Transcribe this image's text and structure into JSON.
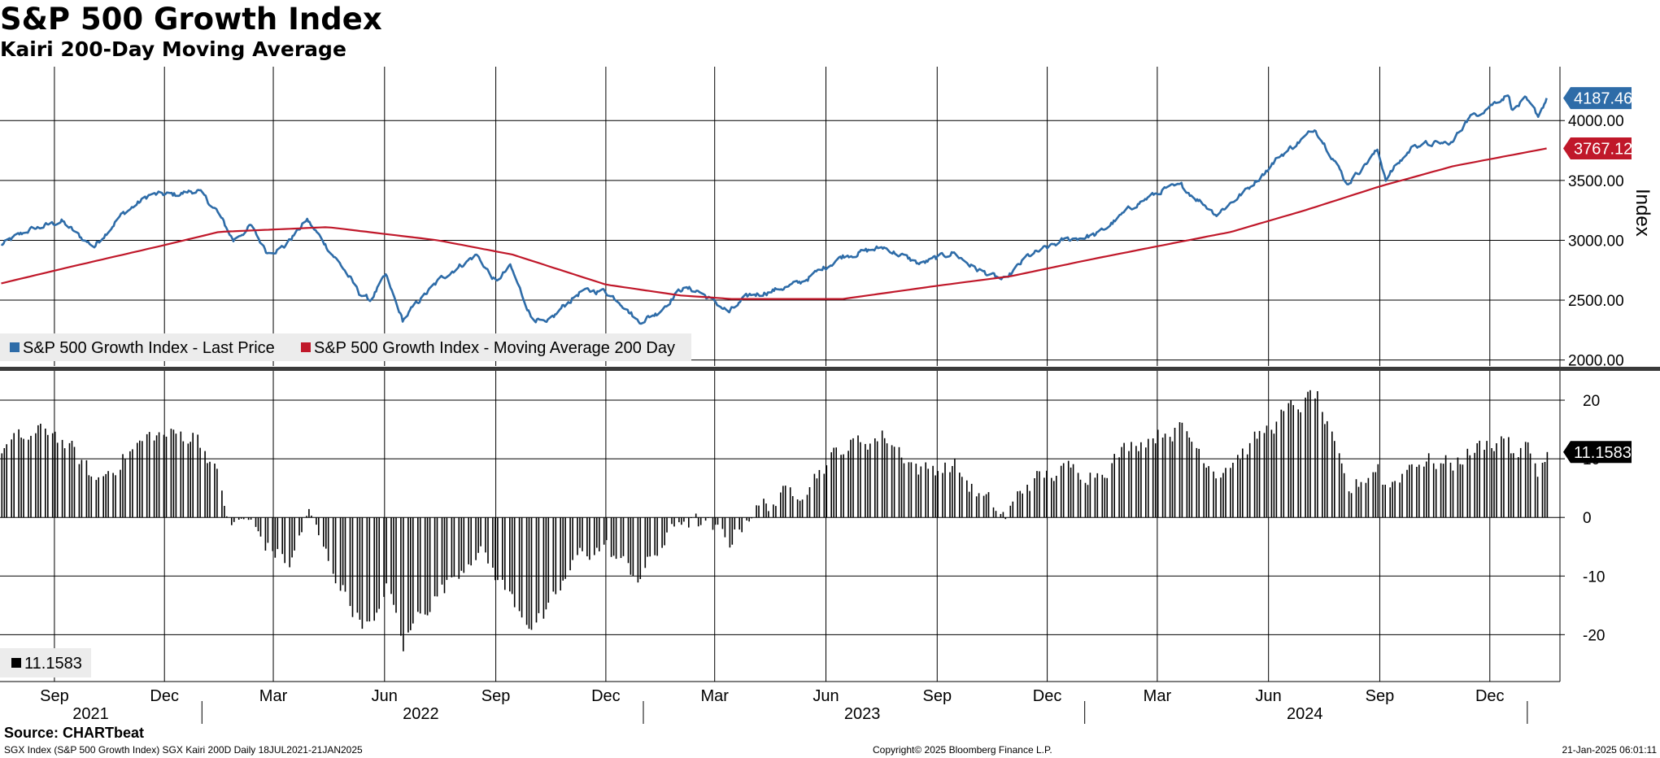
{
  "title": "S&P 500 Growth Index",
  "subtitle": "Kairi 200-Day Moving Average",
  "footer": {
    "source": "Source: CHARTbeat",
    "ticker_info": "SGX Index (S&P 500 Growth Index) SGX Kairi 200D  Daily 18JUL2021-21JAN2025",
    "copyright": "Copyright© 2025 Bloomberg Finance L.P.",
    "timestamp": "21-Jan-2025 06:01:11"
  },
  "colors": {
    "price": "#2e6ca8",
    "ma": "#c0182a",
    "kairi": "#000000",
    "grid": "#000000"
  },
  "chart_data": [
    {
      "type": "line",
      "ylabel": "Index",
      "ylim": [
        1950,
        4450
      ],
      "yticks": [
        "2000.00",
        "2500.00",
        "3000.00",
        "3500.00",
        "4000.00"
      ],
      "grid": true,
      "legend_placement": "bottom-left",
      "series": [
        {
          "name": "S&P 500 Growth Index - Last Price",
          "color": "#2e6ca8",
          "last_value_label": "4187.46",
          "points": [
            [
              "2021-07-19",
              2960
            ],
            [
              "2021-08-10",
              3080
            ],
            [
              "2021-09-07",
              3160
            ],
            [
              "2021-09-22",
              3030
            ],
            [
              "2021-10-04",
              2950
            ],
            [
              "2021-10-25",
              3200
            ],
            [
              "2021-11-19",
              3380
            ],
            [
              "2021-12-10",
              3380
            ],
            [
              "2021-12-28",
              3420
            ],
            [
              "2022-01-13",
              3250
            ],
            [
              "2022-01-27",
              3000
            ],
            [
              "2022-02-10",
              3120
            ],
            [
              "2022-02-24",
              2900
            ],
            [
              "2022-03-10",
              2950
            ],
            [
              "2022-03-29",
              3170
            ],
            [
              "2022-04-12",
              2980
            ],
            [
              "2022-04-29",
              2750
            ],
            [
              "2022-05-11",
              2560
            ],
            [
              "2022-05-20",
              2500
            ],
            [
              "2022-06-02",
              2700
            ],
            [
              "2022-06-16",
              2330
            ],
            [
              "2022-06-30",
              2500
            ],
            [
              "2022-07-20",
              2700
            ],
            [
              "2022-08-16",
              2880
            ],
            [
              "2022-09-01",
              2650
            ],
            [
              "2022-09-13",
              2780
            ],
            [
              "2022-09-30",
              2370
            ],
            [
              "2022-10-13",
              2290
            ],
            [
              "2022-10-27",
              2450
            ],
            [
              "2022-11-10",
              2570
            ],
            [
              "2022-11-30",
              2580
            ],
            [
              "2022-12-14",
              2480
            ],
            [
              "2022-12-28",
              2320
            ],
            [
              "2023-01-12",
              2390
            ],
            [
              "2023-02-02",
              2600
            ],
            [
              "2023-02-15",
              2580
            ],
            [
              "2023-03-13",
              2400
            ],
            [
              "2023-03-30",
              2540
            ],
            [
              "2023-04-18",
              2580
            ],
            [
              "2023-05-10",
              2640
            ],
            [
              "2023-06-15",
              2870
            ],
            [
              "2023-07-19",
              2940
            ],
            [
              "2023-08-18",
              2800
            ],
            [
              "2023-09-14",
              2900
            ],
            [
              "2023-10-03",
              2760
            ],
            [
              "2023-10-27",
              2660
            ],
            [
              "2023-11-14",
              2860
            ],
            [
              "2023-12-15",
              3000
            ],
            [
              "2024-01-12",
              3050
            ],
            [
              "2024-02-12",
              3300
            ],
            [
              "2024-03-08",
              3430
            ],
            [
              "2024-03-21",
              3450
            ],
            [
              "2024-04-19",
              3220
            ],
            [
              "2024-05-15",
              3430
            ],
            [
              "2024-06-10",
              3700
            ],
            [
              "2024-07-10",
              3930
            ],
            [
              "2024-07-24",
              3700
            ],
            [
              "2024-08-05",
              3470
            ],
            [
              "2024-08-30",
              3750
            ],
            [
              "2024-09-06",
              3520
            ],
            [
              "2024-09-30",
              3800
            ],
            [
              "2024-10-31",
              3810
            ],
            [
              "2024-11-11",
              4000
            ],
            [
              "2024-12-16",
              4220
            ],
            [
              "2024-12-20",
              4090
            ],
            [
              "2024-12-30",
              4170
            ],
            [
              "2025-01-10",
              4040
            ],
            [
              "2025-01-17",
              4187.46
            ]
          ]
        },
        {
          "name": "S&P 500 Growth Index - Moving Average 200 Day",
          "color": "#c0182a",
          "last_value_label": "3767.12",
          "points": [
            [
              "2021-07-19",
              2640
            ],
            [
              "2021-09-15",
              2780
            ],
            [
              "2021-12-01",
              2960
            ],
            [
              "2022-01-15",
              3070
            ],
            [
              "2022-04-15",
              3110
            ],
            [
              "2022-07-15",
              3000
            ],
            [
              "2022-09-15",
              2880
            ],
            [
              "2022-12-01",
              2630
            ],
            [
              "2023-01-31",
              2540
            ],
            [
              "2023-03-15",
              2510
            ],
            [
              "2023-06-15",
              2510
            ],
            [
              "2023-09-01",
              2620
            ],
            [
              "2023-11-01",
              2700
            ],
            [
              "2024-01-01",
              2830
            ],
            [
              "2024-03-01",
              2950
            ],
            [
              "2024-05-01",
              3070
            ],
            [
              "2024-07-01",
              3250
            ],
            [
              "2024-09-01",
              3450
            ],
            [
              "2024-11-01",
              3620
            ],
            [
              "2025-01-17",
              3767.12
            ]
          ]
        }
      ]
    },
    {
      "type": "bar",
      "ylim": [
        -28,
        25
      ],
      "yticks": [
        "-20",
        "-10",
        "0",
        "10",
        "20"
      ],
      "grid": true,
      "legend_placement": "bottom-left",
      "series": [
        {
          "name": "11.1583",
          "color": "#000000",
          "last_value_label": "11.1583",
          "points": [
            [
              "2021-07-19",
              12
            ],
            [
              "2021-08-30",
              15
            ],
            [
              "2021-09-20",
              10
            ],
            [
              "2021-10-05",
              6
            ],
            [
              "2021-10-25",
              10
            ],
            [
              "2021-11-20",
              14
            ],
            [
              "2021-12-10",
              14
            ],
            [
              "2021-12-28",
              14
            ],
            [
              "2022-01-10",
              9
            ],
            [
              "2022-01-25",
              -2
            ],
            [
              "2022-02-05",
              0
            ],
            [
              "2022-02-24",
              -5
            ],
            [
              "2022-03-15",
              -8
            ],
            [
              "2022-03-29",
              1
            ],
            [
              "2022-04-12",
              -6
            ],
            [
              "2022-04-29",
              -13
            ],
            [
              "2022-05-10",
              -17
            ],
            [
              "2022-05-24",
              -19
            ],
            [
              "2022-06-02",
              -11
            ],
            [
              "2022-06-16",
              -22
            ],
            [
              "2022-06-30",
              -16
            ],
            [
              "2022-07-20",
              -12
            ],
            [
              "2022-08-16",
              -5
            ],
            [
              "2022-09-01",
              -10
            ],
            [
              "2022-09-14",
              -14
            ],
            [
              "2022-09-30",
              -18
            ],
            [
              "2022-10-13",
              -17
            ],
            [
              "2022-10-27",
              -11
            ],
            [
              "2022-11-10",
              -6
            ],
            [
              "2022-11-30",
              -5
            ],
            [
              "2022-12-14",
              -8
            ],
            [
              "2022-12-28",
              -10
            ],
            [
              "2023-01-12",
              -6
            ],
            [
              "2023-02-02",
              0
            ],
            [
              "2023-02-15",
              -1
            ],
            [
              "2023-03-13",
              -4
            ],
            [
              "2023-03-30",
              1
            ],
            [
              "2023-04-20",
              3
            ],
            [
              "2023-05-10",
              5
            ],
            [
              "2023-06-15",
              12
            ],
            [
              "2023-07-19",
              14
            ],
            [
              "2023-08-18",
              8
            ],
            [
              "2023-09-14",
              9
            ],
            [
              "2023-10-03",
              4
            ],
            [
              "2023-10-27",
              0
            ],
            [
              "2023-11-14",
              6
            ],
            [
              "2023-12-15",
              8
            ],
            [
              "2024-01-12",
              8
            ],
            [
              "2024-02-12",
              13
            ],
            [
              "2024-03-08",
              15
            ],
            [
              "2024-03-21",
              15
            ],
            [
              "2024-04-19",
              8
            ],
            [
              "2024-05-15",
              12
            ],
            [
              "2024-06-10",
              17
            ],
            [
              "2024-07-10",
              21
            ],
            [
              "2024-07-24",
              12
            ],
            [
              "2024-08-05",
              4
            ],
            [
              "2024-08-30",
              9
            ],
            [
              "2024-09-06",
              5
            ],
            [
              "2024-09-30",
              10
            ],
            [
              "2024-10-31",
              9
            ],
            [
              "2024-11-11",
              11
            ],
            [
              "2024-12-16",
              14
            ],
            [
              "2024-12-20",
              10
            ],
            [
              "2024-12-30",
              12
            ],
            [
              "2025-01-10",
              8
            ],
            [
              "2025-01-17",
              11.1583
            ]
          ]
        }
      ]
    }
  ],
  "x_axis": {
    "months": [
      {
        "label": "Sep",
        "date": "2021-09-01"
      },
      {
        "label": "Dec",
        "date": "2021-12-01"
      },
      {
        "label": "Mar",
        "date": "2022-03-01"
      },
      {
        "label": "Jun",
        "date": "2022-06-01"
      },
      {
        "label": "Sep",
        "date": "2022-09-01"
      },
      {
        "label": "Dec",
        "date": "2022-12-01"
      },
      {
        "label": "Mar",
        "date": "2023-03-01"
      },
      {
        "label": "Jun",
        "date": "2023-06-01"
      },
      {
        "label": "Sep",
        "date": "2023-09-01"
      },
      {
        "label": "Dec",
        "date": "2023-12-01"
      },
      {
        "label": "Mar",
        "date": "2024-03-01"
      },
      {
        "label": "Jun",
        "date": "2024-06-01"
      },
      {
        "label": "Sep",
        "date": "2024-09-01"
      },
      {
        "label": "Dec",
        "date": "2024-12-01"
      }
    ],
    "years": [
      {
        "label": "2021",
        "date": "2021-10-01"
      },
      {
        "label": "2022",
        "date": "2022-07-01"
      },
      {
        "label": "2023",
        "date": "2023-07-01"
      },
      {
        "label": "2024",
        "date": "2024-07-01"
      }
    ],
    "year_boundaries": [
      "2022-01-01",
      "2023-01-01",
      "2024-01-01",
      "2025-01-01"
    ]
  }
}
